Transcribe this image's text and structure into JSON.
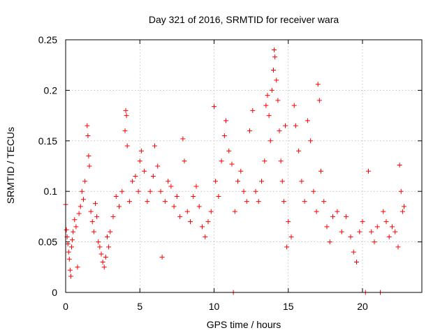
{
  "chart_data": {
    "type": "scatter",
    "title": "Day 321 of 2016, SRMTID for receiver wara",
    "xlabel": "GPS time / hours",
    "ylabel": "SRMTID / TECUs",
    "xlim": [
      0,
      24
    ],
    "ylim": [
      0,
      0.25
    ],
    "xticks": [
      0,
      5,
      10,
      15,
      20
    ],
    "xtick_labels": [
      "0",
      "5",
      "10",
      "15",
      "20"
    ],
    "yticks": [
      0,
      0.05,
      0.1,
      0.15,
      0.2,
      0.25
    ],
    "ytick_labels": [
      "0",
      "0.05",
      "0.1",
      "0.15",
      "0.2",
      "0.25"
    ],
    "grid": true,
    "marker": "+",
    "color": "#ff0000",
    "series": [
      {
        "name": "SRMTID",
        "x_range": [
          0,
          22.8
        ],
        "typical_range": [
          0.03,
          0.14
        ],
        "points": [
          [
            0.0,
            0.087
          ],
          [
            0.05,
            0.062
          ],
          [
            0.1,
            0.055
          ],
          [
            0.15,
            0.048
          ],
          [
            0.2,
            0.04
          ],
          [
            0.25,
            0.033
          ],
          [
            0.3,
            0.022
          ],
          [
            0.35,
            0.016
          ],
          [
            0.4,
            0.045
          ],
          [
            0.45,
            0.052
          ],
          [
            0.5,
            0.06
          ],
          [
            0.6,
            0.072
          ],
          [
            0.7,
            0.065
          ],
          [
            0.8,
            0.025
          ],
          [
            0.9,
            0.078
          ],
          [
            1.0,
            0.085
          ],
          [
            1.1,
            0.1
          ],
          [
            1.2,
            0.092
          ],
          [
            1.3,
            0.11
          ],
          [
            1.45,
            0.165
          ],
          [
            1.5,
            0.155
          ],
          [
            1.55,
            0.135
          ],
          [
            1.6,
            0.125
          ],
          [
            1.7,
            0.08
          ],
          [
            1.8,
            0.07
          ],
          [
            1.9,
            0.06
          ],
          [
            2.0,
            0.088
          ],
          [
            2.1,
            0.075
          ],
          [
            2.2,
            0.05
          ],
          [
            2.3,
            0.045
          ],
          [
            2.4,
            0.038
          ],
          [
            2.5,
            0.03
          ],
          [
            2.6,
            0.025
          ],
          [
            2.7,
            0.035
          ],
          [
            2.8,
            0.055
          ],
          [
            2.9,
            0.045
          ],
          [
            3.0,
            0.06
          ],
          [
            3.2,
            0.075
          ],
          [
            3.4,
            0.095
          ],
          [
            3.6,
            0.085
          ],
          [
            3.8,
            0.1
          ],
          [
            4.0,
            0.16
          ],
          [
            4.05,
            0.18
          ],
          [
            4.1,
            0.175
          ],
          [
            4.15,
            0.145
          ],
          [
            4.3,
            0.09
          ],
          [
            4.5,
            0.11
          ],
          [
            4.7,
            0.115
          ],
          [
            4.9,
            0.1
          ],
          [
            5.0,
            0.13
          ],
          [
            5.1,
            0.14
          ],
          [
            5.3,
            0.12
          ],
          [
            5.5,
            0.09
          ],
          [
            5.7,
            0.1
          ],
          [
            5.9,
            0.115
          ],
          [
            6.0,
            0.145
          ],
          [
            6.2,
            0.125
          ],
          [
            6.4,
            0.1
          ],
          [
            6.5,
            0.035
          ],
          [
            6.7,
            0.09
          ],
          [
            6.9,
            0.11
          ],
          [
            7.1,
            0.105
          ],
          [
            7.3,
            0.085
          ],
          [
            7.5,
            0.095
          ],
          [
            7.7,
            0.075
          ],
          [
            7.9,
            0.152
          ],
          [
            8.0,
            0.13
          ],
          [
            8.2,
            0.08
          ],
          [
            8.4,
            0.07
          ],
          [
            8.6,
            0.095
          ],
          [
            8.8,
            0.105
          ],
          [
            9.0,
            0.085
          ],
          [
            9.2,
            0.065
          ],
          [
            9.4,
            0.055
          ],
          [
            9.6,
            0.07
          ],
          [
            9.8,
            0.08
          ],
          [
            10.0,
            0.184
          ],
          [
            10.1,
            0.11
          ],
          [
            10.3,
            0.095
          ],
          [
            10.5,
            0.13
          ],
          [
            10.7,
            0.155
          ],
          [
            10.8,
            0.17
          ],
          [
            11.0,
            0.14
          ],
          [
            11.2,
            0.127
          ],
          [
            11.3,
            0.0
          ],
          [
            11.4,
            0.08
          ],
          [
            11.6,
            0.11
          ],
          [
            11.8,
            0.12
          ],
          [
            12.0,
            0.1
          ],
          [
            12.2,
            0.09
          ],
          [
            12.4,
            0.16
          ],
          [
            12.6,
            0.18
          ],
          [
            12.8,
            0.1
          ],
          [
            13.0,
            0.09
          ],
          [
            13.2,
            0.11
          ],
          [
            13.4,
            0.13
          ],
          [
            13.5,
            0.185
          ],
          [
            13.6,
            0.195
          ],
          [
            13.7,
            0.175
          ],
          [
            13.8,
            0.15
          ],
          [
            13.9,
            0.2
          ],
          [
            14.0,
            0.22
          ],
          [
            14.05,
            0.24
          ],
          [
            14.1,
            0.233
          ],
          [
            14.2,
            0.21
          ],
          [
            14.3,
            0.19
          ],
          [
            14.4,
            0.16
          ],
          [
            14.5,
            0.13
          ],
          [
            14.6,
            0.11
          ],
          [
            14.7,
            0.09
          ],
          [
            14.8,
            0.165
          ],
          [
            14.9,
            0.045
          ],
          [
            15.0,
            0.07
          ],
          [
            15.2,
            0.055
          ],
          [
            15.4,
            0.185
          ],
          [
            15.5,
            0.165
          ],
          [
            15.7,
            0.14
          ],
          [
            15.9,
            0.11
          ],
          [
            16.1,
            0.09
          ],
          [
            16.3,
            0.17
          ],
          [
            16.5,
            0.15
          ],
          [
            16.7,
            0.1
          ],
          [
            16.9,
            0.08
          ],
          [
            17.0,
            0.206
          ],
          [
            17.1,
            0.19
          ],
          [
            17.2,
            0.12
          ],
          [
            17.4,
            0.09
          ],
          [
            17.6,
            0.065
          ],
          [
            17.8,
            0.05
          ],
          [
            18.0,
            0.075
          ],
          [
            18.3,
            0.08
          ],
          [
            18.6,
            0.06
          ],
          [
            18.9,
            0.075
          ],
          [
            19.2,
            0.055
          ],
          [
            19.4,
            0.04
          ],
          [
            19.6,
            0.03
          ],
          [
            19.8,
            0.06
          ],
          [
            20.0,
            0.07
          ],
          [
            20.2,
            0.0
          ],
          [
            20.4,
            0.12
          ],
          [
            20.6,
            0.06
          ],
          [
            20.8,
            0.05
          ],
          [
            21.0,
            0.065
          ],
          [
            21.2,
            0.0
          ],
          [
            21.4,
            0.08
          ],
          [
            21.6,
            0.07
          ],
          [
            21.8,
            0.055
          ],
          [
            22.0,
            0.065
          ],
          [
            22.2,
            0.06
          ],
          [
            22.4,
            0.045
          ],
          [
            22.5,
            0.126
          ],
          [
            22.6,
            0.1
          ],
          [
            22.7,
            0.08
          ],
          [
            22.8,
            0.085
          ]
        ]
      }
    ]
  }
}
